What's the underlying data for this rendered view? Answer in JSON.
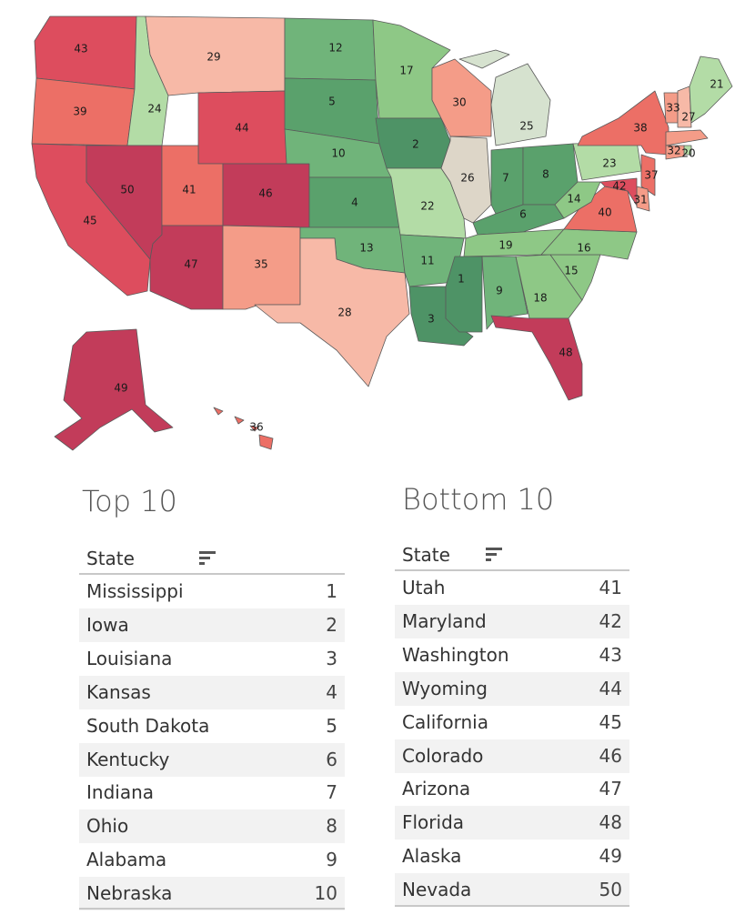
{
  "colors": {
    "rank_1_3": "#4e9366",
    "rank_4_8": "#5aa16c",
    "rank_9_13": "#70b47a",
    "rank_14_19": "#8ec886",
    "rank_20_24": "#b3dca6",
    "rank_25": "#d6e2cf",
    "rank_26": "#ddd6c8",
    "rank_27_29": "#f7b9a7",
    "rank_30_35": "#f49c88",
    "rank_36_41": "#ec6f66",
    "rank_42_45": "#dd4d5e",
    "rank_46_50": "#c23c5a"
  },
  "map": {
    "states": [
      {
        "id": "WA",
        "rank": "43"
      },
      {
        "id": "OR",
        "rank": "39"
      },
      {
        "id": "CA",
        "rank": "45"
      },
      {
        "id": "ID",
        "rank": "24"
      },
      {
        "id": "NV",
        "rank": "50"
      },
      {
        "id": "MT",
        "rank": "29"
      },
      {
        "id": "WY",
        "rank": "44"
      },
      {
        "id": "UT",
        "rank": "41"
      },
      {
        "id": "AZ",
        "rank": "47"
      },
      {
        "id": "CO",
        "rank": "46"
      },
      {
        "id": "NM",
        "rank": "35"
      },
      {
        "id": "ND",
        "rank": "12"
      },
      {
        "id": "SD",
        "rank": "5"
      },
      {
        "id": "NE",
        "rank": "10"
      },
      {
        "id": "KS",
        "rank": "4"
      },
      {
        "id": "OK",
        "rank": "13"
      },
      {
        "id": "TX",
        "rank": "28"
      },
      {
        "id": "MN",
        "rank": "17"
      },
      {
        "id": "IA",
        "rank": "2"
      },
      {
        "id": "MO",
        "rank": "22"
      },
      {
        "id": "AR",
        "rank": "11"
      },
      {
        "id": "LA",
        "rank": "3"
      },
      {
        "id": "WI",
        "rank": "30"
      },
      {
        "id": "IL",
        "rank": "26"
      },
      {
        "id": "MI",
        "rank": "25"
      },
      {
        "id": "IN",
        "rank": "7"
      },
      {
        "id": "OH",
        "rank": "8"
      },
      {
        "id": "KY",
        "rank": "6"
      },
      {
        "id": "TN",
        "rank": "19"
      },
      {
        "id": "MS",
        "rank": "1"
      },
      {
        "id": "AL",
        "rank": "9"
      },
      {
        "id": "GA",
        "rank": "18"
      },
      {
        "id": "FL",
        "rank": "48"
      },
      {
        "id": "SC",
        "rank": "15"
      },
      {
        "id": "NC",
        "rank": "16"
      },
      {
        "id": "VA",
        "rank": "40"
      },
      {
        "id": "WV",
        "rank": "14"
      },
      {
        "id": "PA",
        "rank": "23"
      },
      {
        "id": "NY",
        "rank": "38"
      },
      {
        "id": "VT",
        "rank": "33"
      },
      {
        "id": "NH",
        "rank": "27"
      },
      {
        "id": "ME",
        "rank": "21"
      },
      {
        "id": "MA",
        "rank": "32"
      },
      {
        "id": "RI",
        "rank": "20"
      },
      {
        "id": "CT",
        "rank": "32"
      },
      {
        "id": "NJ",
        "rank": "37"
      },
      {
        "id": "DE",
        "rank": "31"
      },
      {
        "id": "MD",
        "rank": "42"
      },
      {
        "id": "AK",
        "rank": "49"
      },
      {
        "id": "HI",
        "rank": "36"
      }
    ]
  },
  "top": {
    "title": "Top 10",
    "header": "State",
    "rows": [
      {
        "state": "Mississippi",
        "rank": "1"
      },
      {
        "state": "Iowa",
        "rank": "2"
      },
      {
        "state": "Louisiana",
        "rank": "3"
      },
      {
        "state": "Kansas",
        "rank": "4"
      },
      {
        "state": "South Dakota",
        "rank": "5"
      },
      {
        "state": "Kentucky",
        "rank": "6"
      },
      {
        "state": "Indiana",
        "rank": "7"
      },
      {
        "state": "Ohio",
        "rank": "8"
      },
      {
        "state": "Alabama",
        "rank": "9"
      },
      {
        "state": "Nebraska",
        "rank": "10"
      }
    ]
  },
  "bottom": {
    "title": "Bottom 10",
    "header": "State",
    "rows": [
      {
        "state": "Utah",
        "rank": "41"
      },
      {
        "state": "Maryland",
        "rank": "42"
      },
      {
        "state": "Washington",
        "rank": "43"
      },
      {
        "state": "Wyoming",
        "rank": "44"
      },
      {
        "state": "California",
        "rank": "45"
      },
      {
        "state": "Colorado",
        "rank": "46"
      },
      {
        "state": "Arizona",
        "rank": "47"
      },
      {
        "state": "Florida",
        "rank": "48"
      },
      {
        "state": "Alaska",
        "rank": "49"
      },
      {
        "state": "Nevada",
        "rank": "50"
      }
    ]
  }
}
